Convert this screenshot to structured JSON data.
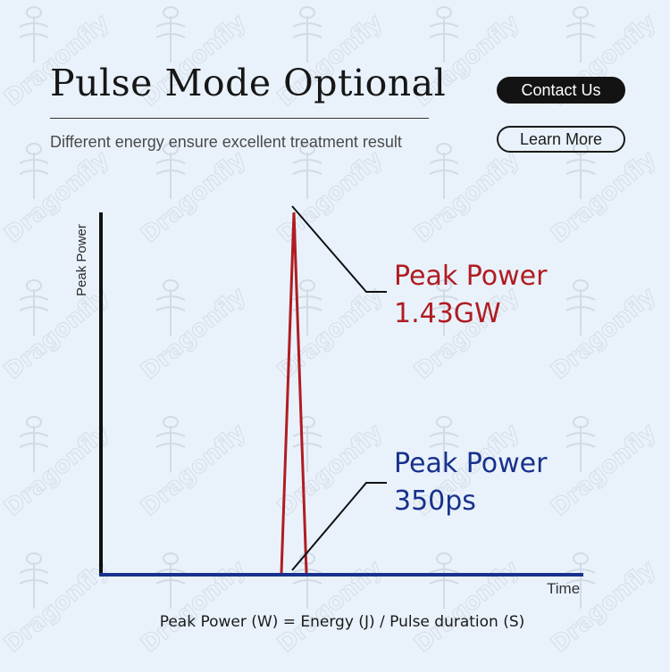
{
  "header": {
    "title": "Pulse Mode Optional",
    "subtitle": "Different energy ensure excellent treatment result"
  },
  "buttons": {
    "contact_label": "Contact Us",
    "learn_label": "Learn More"
  },
  "watermark": {
    "text": "Dragonfly"
  },
  "chart_data": {
    "type": "line",
    "ylabel": "Peak Power",
    "xlabel": "Time",
    "grid": false,
    "legend": "none",
    "series": [
      {
        "color": "#b01c22",
        "x": [
          0.0,
          0.5,
          1.0
        ],
        "y": [
          0,
          1.43,
          0
        ]
      },
      {
        "color": "#18318c",
        "x": [
          0.0,
          1.0
        ],
        "y": [
          0,
          0
        ]
      }
    ],
    "annotations": [
      {
        "line1": "Peak Power",
        "line2": "1.43GW",
        "color": "#b01c22"
      },
      {
        "line1": "Peak Power",
        "line2": "350ps",
        "color": "#18318c"
      }
    ],
    "formula": "Peak Power (W) = Energy (J) / Pulse duration (S)"
  }
}
